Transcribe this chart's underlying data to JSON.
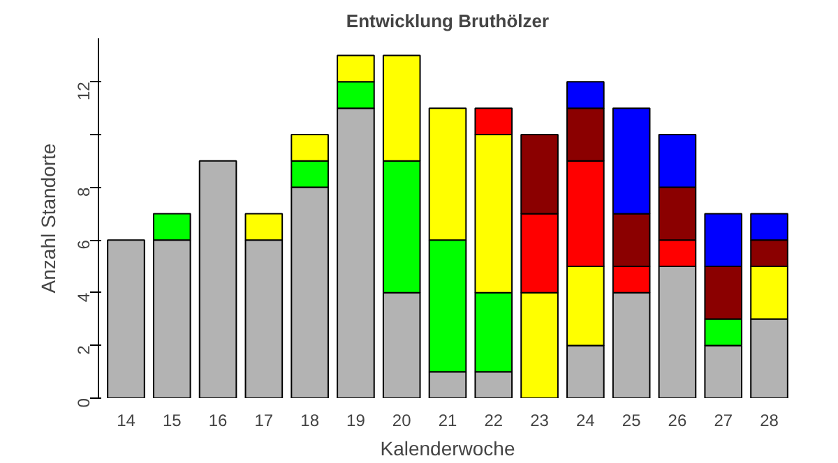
{
  "chart_data": {
    "type": "bar",
    "stacked": true,
    "title": "Entwicklung Bruthölzer",
    "xlabel": "Kalenderwoche",
    "ylabel": "Anzahl Standorte",
    "categories": [
      "14",
      "15",
      "16",
      "17",
      "18",
      "19",
      "20",
      "21",
      "22",
      "23",
      "24",
      "25",
      "26",
      "27",
      "28"
    ],
    "series": [
      {
        "color": "#b3b3b3",
        "values": [
          6,
          6,
          9,
          6,
          8,
          11,
          4,
          1,
          1,
          0,
          2,
          4,
          5,
          2,
          3
        ]
      },
      {
        "color": "#00ff00",
        "values": [
          null,
          1,
          null,
          null,
          1,
          1,
          5,
          5,
          3,
          null,
          null,
          null,
          null,
          1,
          null
        ]
      },
      {
        "color": "#ffff00",
        "values": [
          null,
          null,
          null,
          1,
          1,
          1,
          4,
          5,
          6,
          4,
          3,
          null,
          null,
          null,
          2
        ]
      },
      {
        "color": "#ff0000",
        "values": [
          null,
          null,
          null,
          null,
          null,
          null,
          null,
          null,
          1,
          3,
          4,
          1,
          1,
          null,
          null
        ]
      },
      {
        "color": "#8b0000",
        "values": [
          null,
          null,
          null,
          null,
          null,
          null,
          null,
          null,
          null,
          3,
          2,
          2,
          2,
          2,
          1
        ]
      },
      {
        "color": "#0000ff",
        "values": [
          null,
          null,
          null,
          null,
          null,
          null,
          null,
          null,
          null,
          null,
          1,
          4,
          2,
          2,
          1
        ]
      }
    ],
    "ylim": [
      0,
      13.65
    ],
    "yticks": [
      0,
      2,
      4,
      6,
      8,
      {
        "value": 10,
        "label": null
      },
      12
    ],
    "grid": false
  }
}
